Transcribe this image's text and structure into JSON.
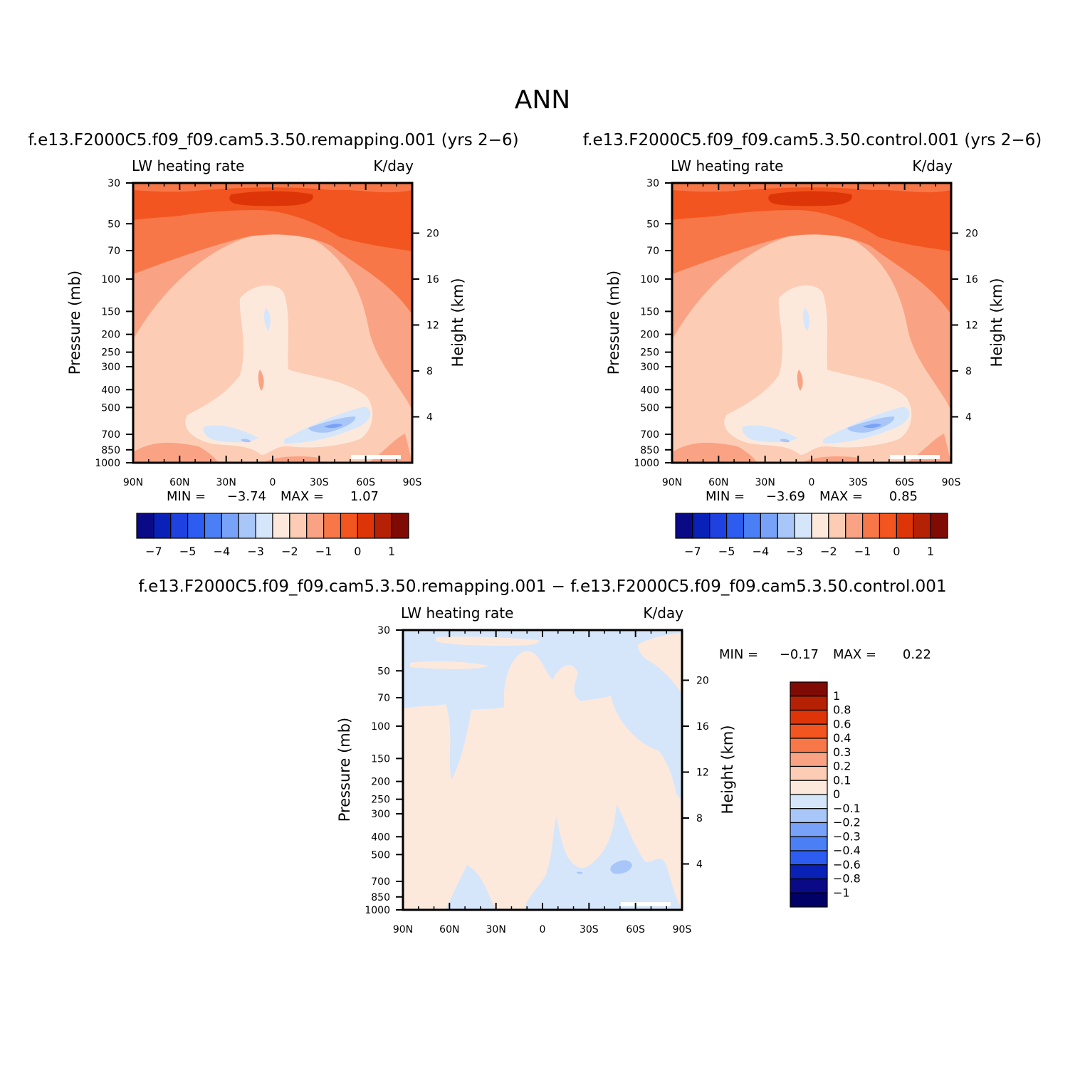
{
  "page_title": "ANN",
  "colors": {
    "cbar_main": [
      "#0a0a86",
      "#0a21b8",
      "#1e41e0",
      "#2d5df0",
      "#4a7ff5",
      "#78a2f7",
      "#a9c6f9",
      "#d5e6fb",
      "#fde9dc",
      "#fcccb4",
      "#f9a384",
      "#f77748",
      "#f2551f",
      "#dd3508",
      "#b52105",
      "#7f0b04"
    ],
    "cbar_diff": [
      "#7f0b04",
      "#b52105",
      "#dd3508",
      "#f2551f",
      "#f77748",
      "#f9a384",
      "#fcccb4",
      "#fde9dc",
      "#d5e6fb",
      "#a9c6f9",
      "#78a2f7",
      "#4a7ff5",
      "#2d5df0",
      "#0a21b8",
      "#0a0a86",
      "#000066"
    ]
  },
  "chart_data": [
    {
      "type": "contour",
      "case_title": "f.e13.F2000C5.f09_f09.cam5.3.50.remapping.001  (yrs 2−6)",
      "variable": "LW heating rate",
      "units": "K/day",
      "ylabel": "Pressure (mb)",
      "ylabel2": "Height (km)",
      "x_ticks": [
        "90N",
        "60N",
        "30N",
        "0",
        "30S",
        "60S",
        "90S"
      ],
      "y_ticks": [
        "30",
        "50",
        "70",
        "100",
        "150",
        "200",
        "250",
        "300",
        "400",
        "500",
        "700",
        "850",
        "1000"
      ],
      "y_ticks_pressure": [
        30,
        50,
        70,
        100,
        150,
        200,
        250,
        300,
        400,
        500,
        700,
        850,
        1000
      ],
      "y2_ticks": [
        "20",
        "16",
        "12",
        "8",
        "4"
      ],
      "y2_ticks_km": [
        20,
        16,
        12,
        8,
        4
      ],
      "ylim": [
        1000,
        30
      ],
      "min_label": "MIN =",
      "min": "−3.74",
      "max_label": "MAX =",
      "max": "1.07",
      "colorbar_labels": [
        "−7",
        "−5",
        "−4",
        "−3",
        "−2",
        "−1",
        "0",
        "1"
      ]
    },
    {
      "type": "contour",
      "case_title": "f.e13.F2000C5.f09_f09.cam5.3.50.control.001  (yrs 2−6)",
      "variable": "LW heating rate",
      "units": "K/day",
      "ylabel": "Pressure (mb)",
      "ylabel2": "Height (km)",
      "x_ticks": [
        "90N",
        "60N",
        "30N",
        "0",
        "30S",
        "60S",
        "90S"
      ],
      "y_ticks": [
        "30",
        "50",
        "70",
        "100",
        "150",
        "200",
        "250",
        "300",
        "400",
        "500",
        "700",
        "850",
        "1000"
      ],
      "y_ticks_pressure": [
        30,
        50,
        70,
        100,
        150,
        200,
        250,
        300,
        400,
        500,
        700,
        850,
        1000
      ],
      "y2_ticks": [
        "20",
        "16",
        "12",
        "8",
        "4"
      ],
      "y2_ticks_km": [
        20,
        16,
        12,
        8,
        4
      ],
      "ylim": [
        1000,
        30
      ],
      "min_label": "MIN =",
      "min": "−3.69",
      "max_label": "MAX =",
      "max": "0.85",
      "colorbar_labels": [
        "−7",
        "−5",
        "−4",
        "−3",
        "−2",
        "−1",
        "0",
        "1"
      ]
    },
    {
      "type": "contour",
      "case_title": "f.e13.F2000C5.f09_f09.cam5.3.50.remapping.001 − f.e13.F2000C5.f09_f09.cam5.3.50.control.001",
      "variable": "LW heating rate",
      "units": "K/day",
      "ylabel": "Pressure (mb)",
      "ylabel2": "Height (km)",
      "x_ticks": [
        "90N",
        "60N",
        "30N",
        "0",
        "30S",
        "60S",
        "90S"
      ],
      "y_ticks": [
        "30",
        "50",
        "70",
        "100",
        "150",
        "200",
        "250",
        "300",
        "400",
        "500",
        "700",
        "850",
        "1000"
      ],
      "y_ticks_pressure": [
        30,
        50,
        70,
        100,
        150,
        200,
        250,
        300,
        400,
        500,
        700,
        850,
        1000
      ],
      "y2_ticks": [
        "20",
        "16",
        "12",
        "8",
        "4"
      ],
      "y2_ticks_km": [
        20,
        16,
        12,
        8,
        4
      ],
      "ylim": [
        1000,
        30
      ],
      "min_label": "MIN =",
      "min": "−0.17",
      "max_label": "MAX =",
      "max": "0.22",
      "colorbar_labels": [
        "1",
        "0.8",
        "0.6",
        "0.4",
        "0.3",
        "0.2",
        "0.1",
        "0",
        "−0.1",
        "−0.2",
        "−0.3",
        "−0.4",
        "−0.6",
        "−0.8",
        "−1"
      ]
    }
  ]
}
